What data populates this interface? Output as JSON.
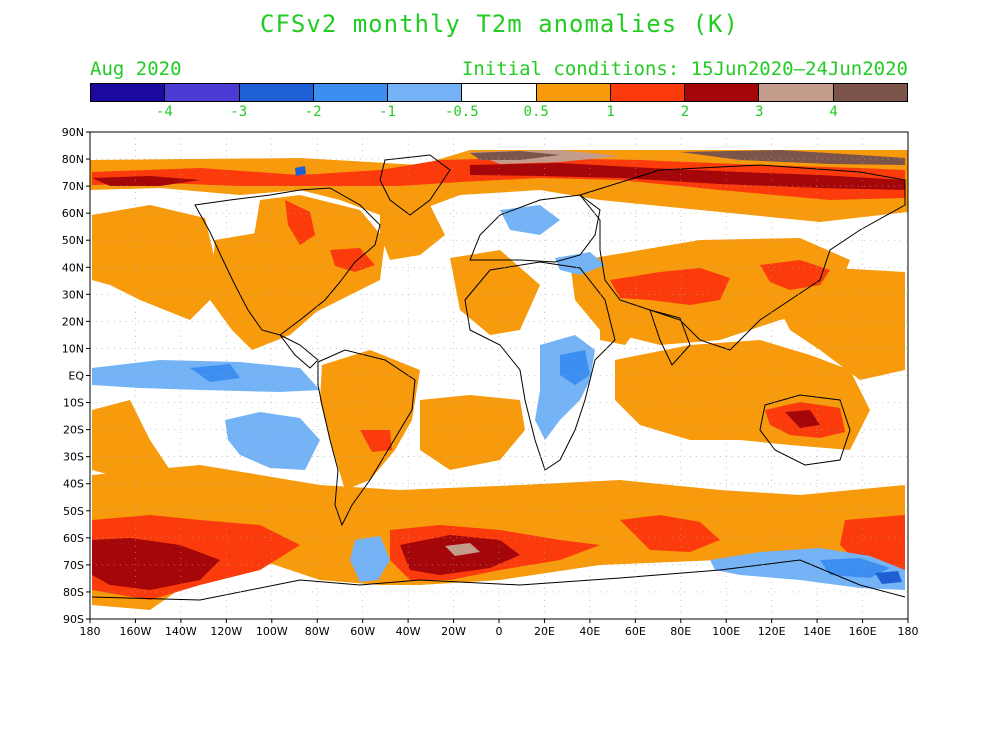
{
  "title": "CFSv2 monthly T2m anomalies (K)",
  "subtitle_left": "Aug 2020",
  "subtitle_right": "Initial conditions: 15Jun2020—24Jun2020",
  "colorbar": {
    "colors": [
      "#1c0a9e",
      "#4a3bd2",
      "#1e5fd6",
      "#3c8ef0",
      "#74b4f6",
      "#ffffff",
      "#f79a0c",
      "#fb3b0c",
      "#a4060a",
      "#c49c8c",
      "#7c544a"
    ],
    "labels": [
      "-4",
      "-3",
      "-2",
      "-1",
      "-0.5",
      "0.5",
      "1",
      "2",
      "3",
      "4"
    ]
  },
  "axes": {
    "lat_labels": [
      "90N",
      "80N",
      "70N",
      "60N",
      "50N",
      "40N",
      "30N",
      "20N",
      "10N",
      "EQ",
      "10S",
      "20S",
      "30S",
      "40S",
      "50S",
      "60S",
      "70S",
      "80S",
      "90S"
    ],
    "lon_labels": [
      "180",
      "160W",
      "140W",
      "120W",
      "100W",
      "80W",
      "60W",
      "40W",
      "20W",
      "0",
      "20E",
      "40E",
      "60E",
      "80E",
      "100E",
      "120E",
      "140E",
      "160E",
      "180"
    ]
  },
  "colors": {
    "text": "#22cc22",
    "anom_low": "#f79a0c",
    "anom_mid": "#fb3b0c",
    "anom_high": "#a4060a",
    "anom_xhigh": "#c49c8c",
    "anom_xxhigh": "#7c544a",
    "cold_light": "#74b4f6",
    "cold_mid": "#3c8ef0",
    "cold_strong": "#1e5fd6"
  }
}
